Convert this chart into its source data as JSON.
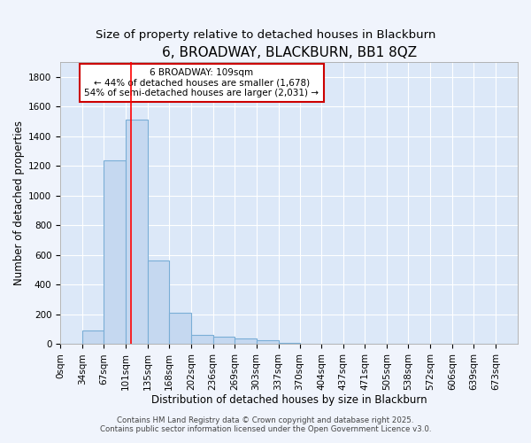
{
  "title": "6, BROADWAY, BLACKBURN, BB1 8QZ",
  "subtitle": "Size of property relative to detached houses in Blackburn",
  "xlabel": "Distribution of detached houses by size in Blackburn",
  "ylabel": "Number of detached properties",
  "bin_labels": [
    "0sqm",
    "34sqm",
    "67sqm",
    "101sqm",
    "135sqm",
    "168sqm",
    "202sqm",
    "236sqm",
    "269sqm",
    "303sqm",
    "337sqm",
    "370sqm",
    "404sqm",
    "437sqm",
    "471sqm",
    "505sqm",
    "538sqm",
    "572sqm",
    "606sqm",
    "639sqm",
    "673sqm"
  ],
  "bin_edges": [
    0,
    34,
    67,
    101,
    135,
    168,
    202,
    236,
    269,
    303,
    337,
    370,
    404,
    437,
    471,
    505,
    538,
    572,
    606,
    639,
    673,
    707
  ],
  "bar_heights": [
    0,
    95,
    1240,
    1510,
    565,
    210,
    65,
    50,
    38,
    28,
    10,
    5,
    5,
    2,
    0,
    0,
    0,
    0,
    0,
    0,
    0
  ],
  "bar_color": "#c5d8f0",
  "bar_edge_color": "#7aaed6",
  "bar_edge_width": 0.8,
  "red_line_x": 109,
  "annotation_text": "6 BROADWAY: 109sqm\n← 44% of detached houses are smaller (1,678)\n54% of semi-detached houses are larger (2,031) →",
  "annotation_box_facecolor": "#ffffff",
  "annotation_box_edgecolor": "#cc0000",
  "ylim": [
    0,
    1900
  ],
  "yticks": [
    0,
    200,
    400,
    600,
    800,
    1000,
    1200,
    1400,
    1600,
    1800
  ],
  "fig_bg_color": "#f0f4fc",
  "plot_bg_color": "#dce8f8",
  "grid_color": "#ffffff",
  "footer_line1": "Contains HM Land Registry data © Crown copyright and database right 2025.",
  "footer_line2": "Contains public sector information licensed under the Open Government Licence v3.0.",
  "title_fontsize": 11,
  "subtitle_fontsize": 9.5,
  "axis_label_fontsize": 8.5,
  "tick_fontsize": 7.5,
  "annotation_fontsize": 7.5,
  "footer_fontsize": 6.2
}
